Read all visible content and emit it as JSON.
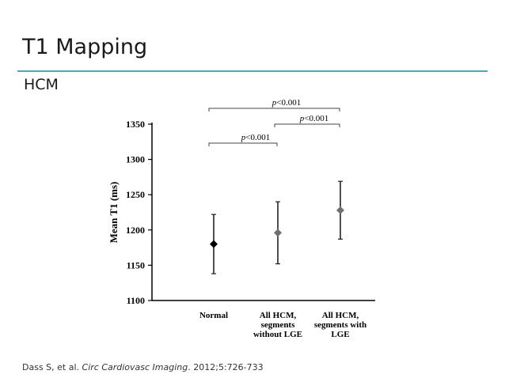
{
  "slide": {
    "title": "T1 Mapping",
    "subtitle": "HCM",
    "citation_prefix": "Dass S, et al. ",
    "citation_journal": "Circ Cardiovasc Imaging",
    "citation_suffix": ". 2012;5:726-733"
  },
  "colors": {
    "accent_rule": "#4aa9b8",
    "text": "#1a1a1a"
  },
  "chart_data": {
    "type": "scatter",
    "title": "",
    "xlabel": "",
    "ylabel": "Mean T1 (ms)",
    "ylim": [
      1100,
      1350
    ],
    "yticks": [
      1100,
      1150,
      1200,
      1250,
      1300,
      1350
    ],
    "grid": false,
    "categories": [
      [
        "Normal"
      ],
      [
        "All HCM,",
        "segments",
        "without LGE"
      ],
      [
        "All HCM,",
        "segments with",
        "LGE"
      ]
    ],
    "points": [
      {
        "mean": 1180,
        "low": 1138,
        "high": 1222,
        "marker": "diamond",
        "color": "#000000"
      },
      {
        "mean": 1196,
        "low": 1152,
        "high": 1240,
        "marker": "diamond",
        "color": "#707070"
      },
      {
        "mean": 1228,
        "low": 1187,
        "high": 1269,
        "marker": "diamond",
        "color": "#707070"
      }
    ],
    "comparisons": [
      {
        "from": 0,
        "to": 2,
        "label": "p<0.001"
      },
      {
        "from": 1,
        "to": 2,
        "label": "p<0.001"
      },
      {
        "from": 0,
        "to": 1,
        "label": "p<0.001"
      }
    ]
  }
}
